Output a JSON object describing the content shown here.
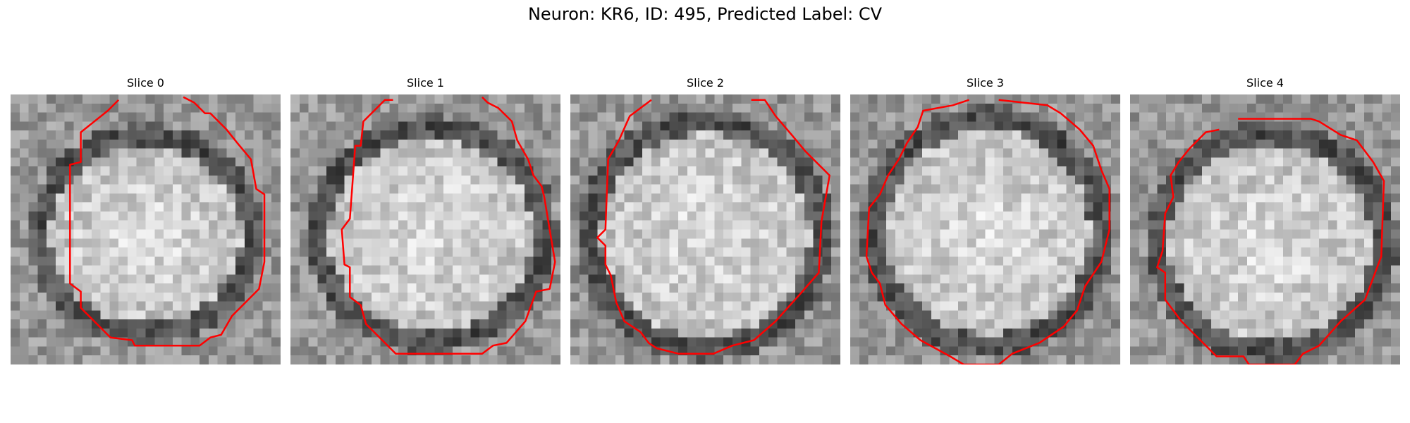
{
  "figure": {
    "title": "Neuron: KR6, ID: 495, Predicted Label: CV"
  },
  "panels": [
    {
      "title": "Slice 0"
    },
    {
      "title": "Slice 1"
    },
    {
      "title": "Slice 2"
    },
    {
      "title": "Slice 3"
    },
    {
      "title": "Slice 4"
    }
  ],
  "colors": {
    "contour": "#ff0000",
    "background": "#ffffff"
  }
}
